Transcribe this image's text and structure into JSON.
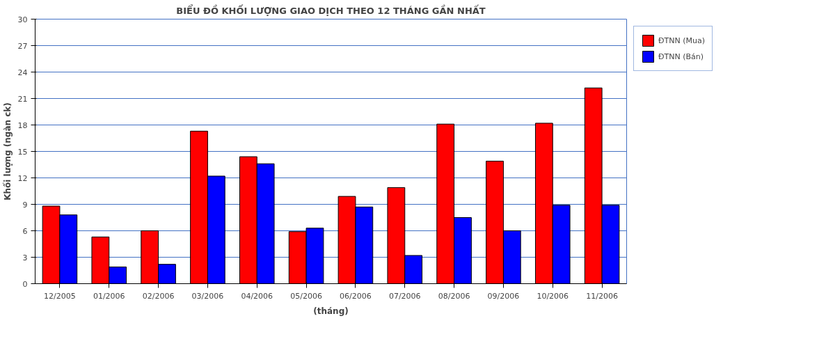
{
  "chart_data": {
    "type": "bar",
    "title": "BIỂU ĐỒ KHỐI LƯỢNG GIAO DỊCH THEO 12 THÁNG GẦN NHẤT",
    "xlabel": "(tháng)",
    "ylabel": "Khối lượng (ngàn ck)",
    "categories": [
      "12/2005",
      "01/2006",
      "02/2006",
      "03/2006",
      "04/2006",
      "05/2006",
      "06/2006",
      "07/2006",
      "08/2006",
      "09/2006",
      "10/2006",
      "11/2006"
    ],
    "series": [
      {
        "name": "ĐTNN (Mua)",
        "color": "#ff0000",
        "values": [
          8.8,
          5.3,
          6.0,
          17.3,
          14.4,
          5.9,
          9.9,
          10.9,
          18.1,
          13.9,
          18.2,
          22.2
        ]
      },
      {
        "name": "ĐTNN (Bán)",
        "color": "#0000ff",
        "values": [
          7.8,
          1.9,
          2.2,
          12.2,
          13.6,
          6.3,
          8.7,
          3.2,
          7.5,
          6.0,
          8.9,
          8.9
        ]
      }
    ],
    "ylim": [
      0,
      30
    ],
    "yticks": [
      0,
      3,
      6,
      9,
      12,
      15,
      18,
      21,
      24,
      27,
      30
    ],
    "grid": "y",
    "legend": "right"
  }
}
